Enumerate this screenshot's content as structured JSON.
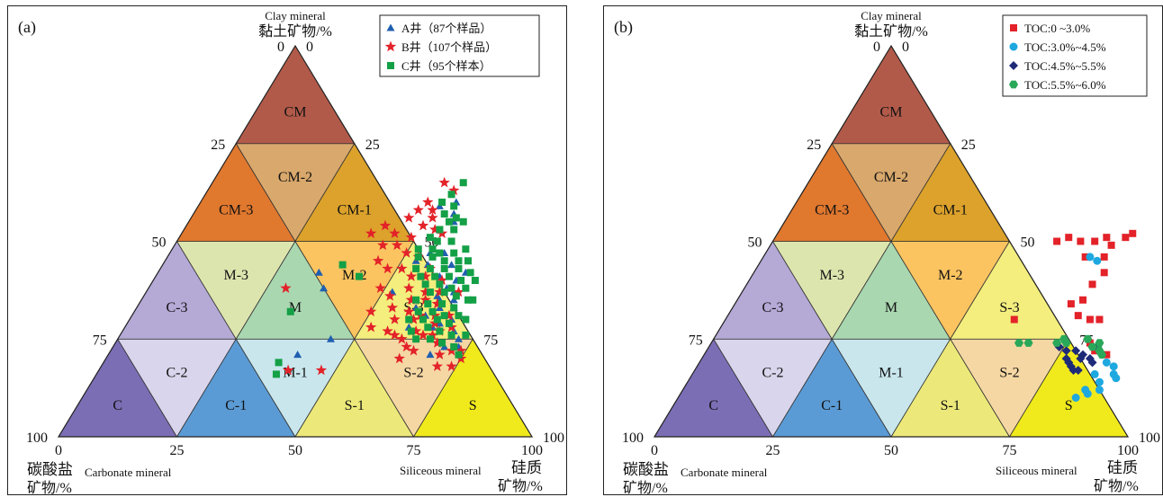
{
  "colors": {
    "CM": "#b25a4a",
    "CM-1": "#dca22b",
    "CM-2": "#d9a86c",
    "CM-3": "#e0782e",
    "M": "#a9d7b0",
    "M-1": "#c8e6ec",
    "M-2": "#fbc460",
    "M-3": "#dde5ae",
    "C": "#7c6eb5",
    "C-1": "#5b9bd5",
    "C-2": "#d9d5ec",
    "C-3": "#b5a9d6",
    "S": "#f0ea1c",
    "S-1": "#ece97a",
    "S-2": "#f5d7a3",
    "S-3": "#f3ee7d",
    "red": "#e32229",
    "blue": "#1f5fb0",
    "green": "#14a046",
    "cyan": "#1ea8e0",
    "navy": "#1d2a78",
    "hexgreen": "#2aa85a"
  },
  "chart_data": [
    {
      "type": "scatter",
      "panel_label": "(a)",
      "apex_label_en": "Clay mineral",
      "apex_label_cn": "黏土矿物/%",
      "left_label_cn": "碳酸盐",
      "left_label_cn2": "矿物/%",
      "left_label_en": "Carbonate mineral",
      "right_label_en": "Siliceous mineral",
      "right_label_cn": "硅质",
      "right_label_cn2": "矿物/%",
      "ticks": {
        "bottom": [
          "0",
          "25",
          "50",
          "75",
          "100"
        ],
        "left": [
          "100",
          "75",
          "50",
          "25",
          "0"
        ],
        "right": [
          "100",
          "75",
          "50",
          "25",
          "0"
        ]
      },
      "region_labels": [
        "CM",
        "CM-3",
        "CM-2",
        "CM-1",
        "M-3",
        "M",
        "M-2",
        "S-3",
        "C-3",
        "C-2",
        "C-1",
        "M-1",
        "S-1",
        "S-2",
        "C",
        "S"
      ],
      "legend": [
        {
          "marker": "triangle",
          "color": "blue",
          "label": "A井（87个样品）"
        },
        {
          "marker": "star",
          "color": "red",
          "label": "B井（107个样品）"
        },
        {
          "marker": "square",
          "color": "green",
          "label": "C井（95个样本）"
        }
      ],
      "axes": {
        "clay": [
          0,
          100
        ],
        "siliceous": [
          0,
          100
        ],
        "carbonate": [
          0,
          100
        ]
      },
      "series": [
        {
          "name": "A井（87个样品）",
          "marker": "triangle",
          "color": "blue",
          "points": [
            [
              54,
              60
            ],
            [
              51,
              59
            ],
            [
              55,
              57
            ],
            [
              56,
              55
            ],
            [
              55,
              47
            ],
            [
              53,
              45
            ],
            [
              56,
              44
            ],
            [
              60,
              41
            ],
            [
              62,
              41
            ],
            [
              64,
              40
            ],
            [
              63,
              38
            ],
            [
              65,
              37
            ],
            [
              62,
              36
            ],
            [
              66,
              35
            ],
            [
              64,
              33
            ],
            [
              67,
              33
            ],
            [
              62,
              31
            ],
            [
              68,
              30
            ],
            [
              66,
              29
            ],
            [
              60,
              28
            ],
            [
              34,
              42
            ],
            [
              37,
              38
            ],
            [
              52,
              37
            ],
            [
              45,
              25
            ],
            [
              40,
              21
            ],
            [
              68,
              21
            ],
            [
              58,
              47
            ],
            [
              59,
              33
            ],
            [
              70,
              27
            ],
            [
              72,
              25
            ],
            [
              73,
              23
            ],
            [
              70,
              23
            ],
            [
              65,
              28
            ],
            [
              63,
              35
            ],
            [
              65,
              42
            ],
            [
              61,
              44
            ]
          ]
        },
        {
          "name": "B井（107个样品）",
          "marker": "star",
          "color": "red",
          "points": [
            [
              52,
              63
            ],
            [
              49,
              65
            ],
            [
              48,
              60
            ],
            [
              50,
              58
            ],
            [
              51,
              56
            ],
            [
              50,
              54
            ],
            [
              46,
              56
            ],
            [
              45,
              52
            ],
            [
              42,
              54
            ],
            [
              53,
              53
            ],
            [
              55,
              52
            ],
            [
              49,
              51
            ],
            [
              47,
              49
            ],
            [
              44,
              49
            ],
            [
              50,
              47
            ],
            [
              53,
              46
            ],
            [
              45,
              45
            ],
            [
              48,
              43
            ],
            [
              51,
              43
            ],
            [
              54,
              41
            ],
            [
              57,
              41
            ],
            [
              49,
              38
            ],
            [
              55,
              38
            ],
            [
              59,
              37
            ],
            [
              62,
              37
            ],
            [
              52,
              36
            ],
            [
              57,
              35
            ],
            [
              60,
              35
            ],
            [
              63,
              34
            ],
            [
              54,
              33
            ],
            [
              58,
              32
            ],
            [
              61,
              31
            ],
            [
              64,
              31
            ],
            [
              67,
              31
            ],
            [
              56,
              30
            ],
            [
              60,
              30
            ],
            [
              65,
              29
            ],
            [
              67,
              27
            ],
            [
              62,
              27
            ],
            [
              64,
              26
            ],
            [
              66,
              26
            ],
            [
              68,
              24
            ],
            [
              72,
              22
            ],
            [
              74,
              22
            ],
            [
              75,
              20
            ],
            [
              74,
              18
            ],
            [
              71,
              18
            ],
            [
              50,
              32
            ],
            [
              52,
              28
            ],
            [
              56,
              27
            ],
            [
              58,
              26
            ],
            [
              60,
              25
            ],
            [
              62,
              23
            ],
            [
              64,
              22
            ],
            [
              29,
              38
            ],
            [
              40,
              17
            ],
            [
              47,
              17
            ],
            [
              40,
              52
            ],
            [
              47,
              58
            ],
            [
              57,
              43
            ],
            [
              61,
              40
            ],
            [
              66,
              37
            ],
            [
              69,
              28
            ],
            [
              70,
              21
            ],
            [
              62,
              20
            ]
          ]
        },
        {
          "name": "C井（95个样本）",
          "marker": "square",
          "color": "green",
          "points": [
            [
              53,
              65
            ],
            [
              52,
              62
            ],
            [
              51,
              60
            ],
            [
              54,
              59
            ],
            [
              53,
              57
            ],
            [
              56,
              56
            ],
            [
              55,
              55
            ],
            [
              54,
              53
            ],
            [
              57,
              53
            ],
            [
              53,
              51
            ],
            [
              55,
              50
            ],
            [
              58,
              50
            ],
            [
              52,
              48
            ],
            [
              55,
              48
            ],
            [
              57,
              47
            ],
            [
              60,
              47
            ],
            [
              53,
              46
            ],
            [
              56,
              46
            ],
            [
              59,
              45
            ],
            [
              62,
              45
            ],
            [
              54,
              43
            ],
            [
              57,
              43
            ],
            [
              60,
              43
            ],
            [
              63,
              43
            ],
            [
              56,
              41
            ],
            [
              59,
              41
            ],
            [
              62,
              41
            ],
            [
              65,
              40
            ],
            [
              58,
              39
            ],
            [
              61,
              39
            ],
            [
              64,
              38
            ],
            [
              67,
              38
            ],
            [
              60,
              37
            ],
            [
              63,
              37
            ],
            [
              66,
              36
            ],
            [
              69,
              35
            ],
            [
              58,
              35
            ],
            [
              61,
              34
            ],
            [
              64,
              34
            ],
            [
              67,
              33
            ],
            [
              60,
              32
            ],
            [
              63,
              32
            ],
            [
              66,
              31
            ],
            [
              69,
              31
            ],
            [
              62,
              30
            ],
            [
              65,
              30
            ],
            [
              68,
              29
            ],
            [
              64,
              28
            ],
            [
              67,
              27
            ],
            [
              70,
              26
            ],
            [
              66,
              25
            ],
            [
              69,
              24
            ],
            [
              72,
              23
            ],
            [
              74,
              21
            ],
            [
              43,
              41
            ],
            [
              38,
              44
            ],
            [
              33,
              32
            ],
            [
              37,
              19
            ],
            [
              38,
              16
            ],
            [
              62,
              48
            ],
            [
              58,
              55
            ],
            [
              64,
              45
            ],
            [
              66,
              42
            ],
            [
              68,
              40
            ],
            [
              70,
              35
            ],
            [
              71,
              30
            ],
            [
              73,
              26
            ],
            [
              59,
              30
            ],
            [
              61,
              27
            ],
            [
              63,
              25
            ]
          ]
        }
      ]
    },
    {
      "type": "scatter",
      "panel_label": "(b)",
      "apex_label_en": "Clay mineral",
      "apex_label_cn": "黏土矿物/%",
      "left_label_cn": "碳酸盐",
      "left_label_cn2": "矿物/%",
      "left_label_en": "Carbonate mineral",
      "right_label_en": "Siliceous mineral",
      "right_label_cn": "硅质",
      "right_label_cn2": "矿物/%",
      "ticks": {
        "bottom": [
          "0",
          "25",
          "50",
          "75",
          "100"
        ],
        "left": [
          "100",
          "75",
          "50",
          "25",
          "0"
        ],
        "right": [
          "100",
          "75",
          "50",
          "25",
          "0"
        ]
      },
      "region_labels": [
        "CM",
        "CM-3",
        "CM-2",
        "CM-1",
        "M-3",
        "M",
        "M-2",
        "S-3",
        "C-3",
        "C-2",
        "C-1",
        "M-1",
        "S-1",
        "S-2",
        "C",
        "S"
      ],
      "legend": [
        {
          "marker": "square",
          "color": "red",
          "label": "TOC:0 ~3.0%"
        },
        {
          "marker": "circle",
          "color": "cyan",
          "label": "TOC:3.0%~4.5%"
        },
        {
          "marker": "diamond",
          "color": "navy",
          "label": "TOC:4.5%~5.5%"
        },
        {
          "marker": "hexagon",
          "color": "hexgreen",
          "label": "TOC:5.5%~6.0%"
        }
      ],
      "axes": {
        "clay": [
          0,
          100
        ],
        "siliceous": [
          0,
          100
        ],
        "carbonate": [
          0,
          100
        ]
      },
      "series": [
        {
          "name": "TOC:0 ~3.0%",
          "marker": "square",
          "color": "red",
          "points": [
            [
              60,
              50
            ],
            [
              62,
              51
            ],
            [
              65,
              50
            ],
            [
              68,
              50
            ],
            [
              70,
              51
            ],
            [
              72,
              49
            ],
            [
              74,
              51
            ],
            [
              75,
              52
            ],
            [
              68,
              46
            ],
            [
              72,
              46
            ],
            [
              74,
              42
            ],
            [
              73,
              39
            ],
            [
              73,
              35
            ],
            [
              71,
              34
            ],
            [
              74,
              31
            ],
            [
              77,
              30
            ],
            [
              79,
              30
            ],
            [
              61,
              30
            ],
            [
              82,
              22
            ],
            [
              85,
              21
            ],
            [
              80,
              24
            ]
          ]
        },
        {
          "name": "TOC:3.0%~4.5%",
          "marker": "circle",
          "color": "cyan",
          "points": [
            [
              69,
              46
            ],
            [
              71,
              45
            ],
            [
              86,
              19
            ],
            [
              88,
              18
            ],
            [
              89,
              16
            ],
            [
              90,
              15
            ],
            [
              85,
              16
            ],
            [
              87,
              14
            ],
            [
              85,
              12
            ],
            [
              84,
              10
            ],
            [
              86,
              11
            ],
            [
              88,
              12
            ]
          ]
        },
        {
          "name": "TOC:4.5%~5.5%",
          "marker": "diamond",
          "color": "navy",
          "points": [
            [
              74,
              23
            ],
            [
              76,
              22
            ],
            [
              77,
              20
            ],
            [
              78,
              19
            ],
            [
              79,
              18
            ],
            [
              80,
              17
            ],
            [
              81,
              17
            ],
            [
              78,
              22
            ],
            [
              80,
              21
            ],
            [
              82,
              20
            ],
            [
              83,
              19
            ],
            [
              82,
              23
            ],
            [
              80,
              20
            ]
          ]
        },
        {
          "name": "TOC:5.5%~6.0%",
          "marker": "hexagon",
          "color": "hexgreen",
          "points": [
            [
              65,
              24
            ],
            [
              67,
              24
            ],
            [
              73,
              24
            ],
            [
              74,
              25
            ],
            [
              75,
              24
            ],
            [
              79,
              25
            ],
            [
              81,
              23
            ],
            [
              83,
              22
            ],
            [
              84,
              21
            ],
            [
              82,
              24
            ]
          ]
        }
      ]
    }
  ]
}
